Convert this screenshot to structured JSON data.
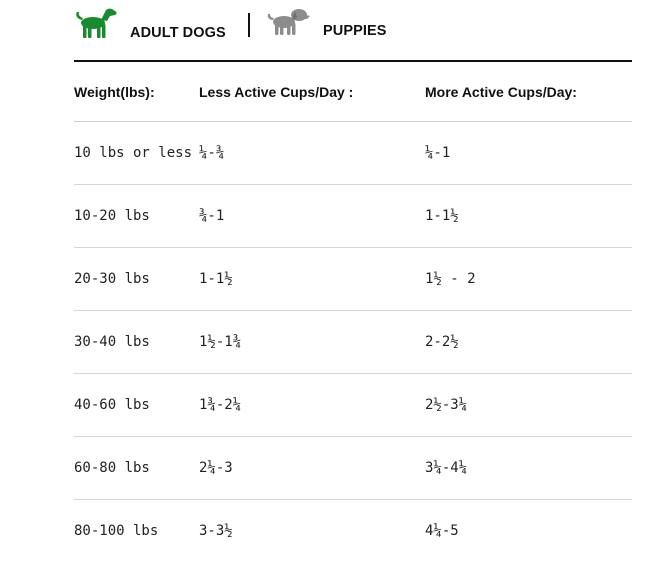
{
  "tabs": {
    "adult": {
      "label": "ADULT DOGS",
      "icon": "dog-icon",
      "icon_color": "#1a8a2e",
      "active": true
    },
    "puppies": {
      "label": "PUPPIES",
      "icon": "puppy-icon",
      "icon_color": "#8c8c8c",
      "active": false
    }
  },
  "table": {
    "headers": [
      "Weight(lbs):",
      "Less Active Cups/Day :",
      "More Active Cups/Day:"
    ],
    "rows": [
      [
        "10 lbs or less",
        "¼-¾",
        "¼-1"
      ],
      [
        "10-20 lbs",
        "¾-1",
        "1-1½"
      ],
      [
        "20-30 lbs",
        "1-1½",
        "1½ - 2"
      ],
      [
        "30-40 lbs",
        "1½-1¾",
        "2-2½"
      ],
      [
        "40-60 lbs",
        "1¾-2¼",
        "2½-3¼"
      ],
      [
        "60-80 lbs",
        "2¼-3",
        "3¼-4¼"
      ],
      [
        "80-100 lbs",
        "3-3½",
        "4¼-5"
      ]
    ]
  }
}
